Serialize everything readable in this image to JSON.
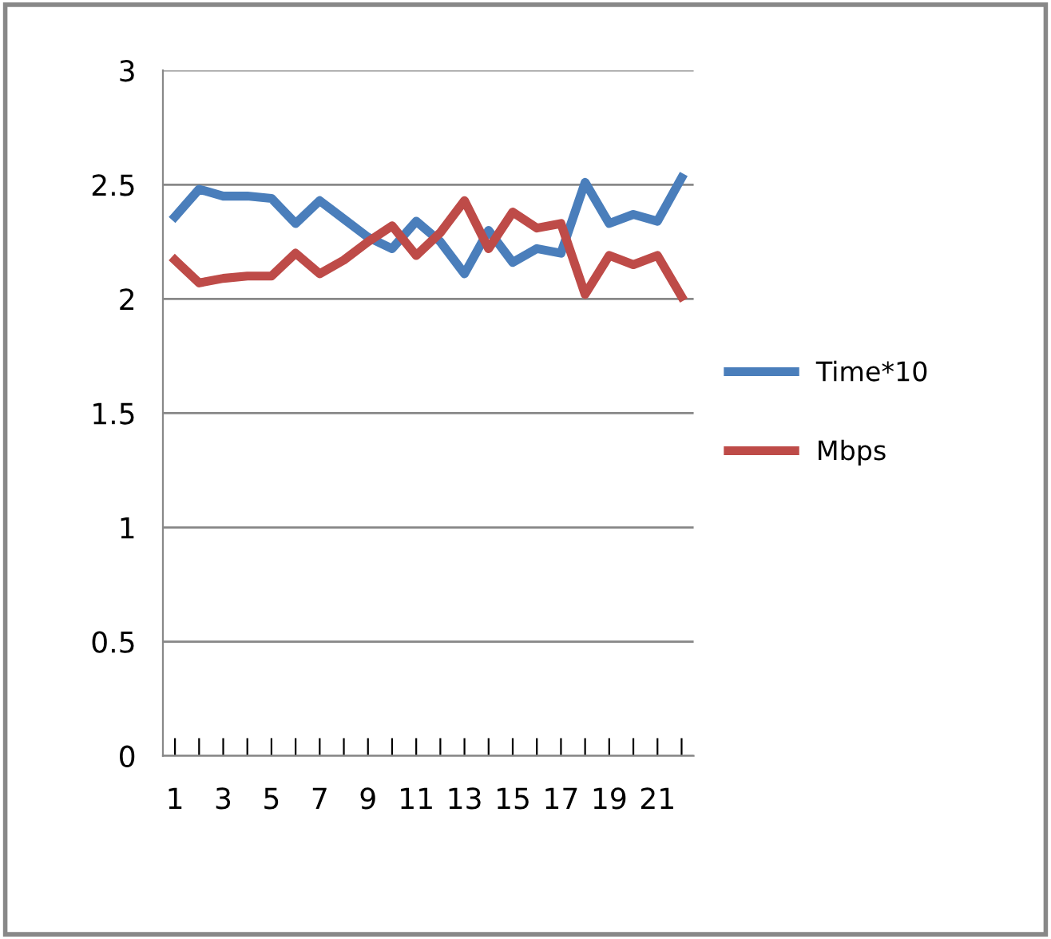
{
  "chart_data": {
    "type": "line",
    "categories": [
      "1",
      null,
      "3",
      null,
      "5",
      null,
      "7",
      null,
      "9",
      null,
      "11",
      null,
      "13",
      null,
      "15",
      null,
      "17",
      null,
      "19",
      null,
      "21",
      null
    ],
    "series": [
      {
        "name": "Time*10",
        "color": "#4a7ebb",
        "values": [
          2.36,
          2.48,
          2.45,
          2.45,
          2.44,
          2.33,
          2.43,
          2.35,
          2.27,
          2.22,
          2.34,
          2.25,
          2.11,
          2.3,
          2.16,
          2.22,
          2.2,
          2.51,
          2.33,
          2.37,
          2.34,
          2.53
        ]
      },
      {
        "name": "Mbps",
        "color": "#be4b48",
        "values": [
          2.17,
          2.07,
          2.09,
          2.1,
          2.1,
          2.2,
          2.11,
          2.17,
          2.25,
          2.32,
          2.19,
          2.29,
          2.43,
          2.22,
          2.38,
          2.31,
          2.33,
          2.02,
          2.19,
          2.15,
          2.19,
          2.01
        ]
      }
    ],
    "ylim": [
      0,
      3
    ],
    "yticks": [
      0,
      0.5,
      1,
      1.5,
      2,
      2.5,
      3
    ],
    "grid": "y",
    "legend": "right",
    "marker": "none",
    "line_style": "solid"
  }
}
